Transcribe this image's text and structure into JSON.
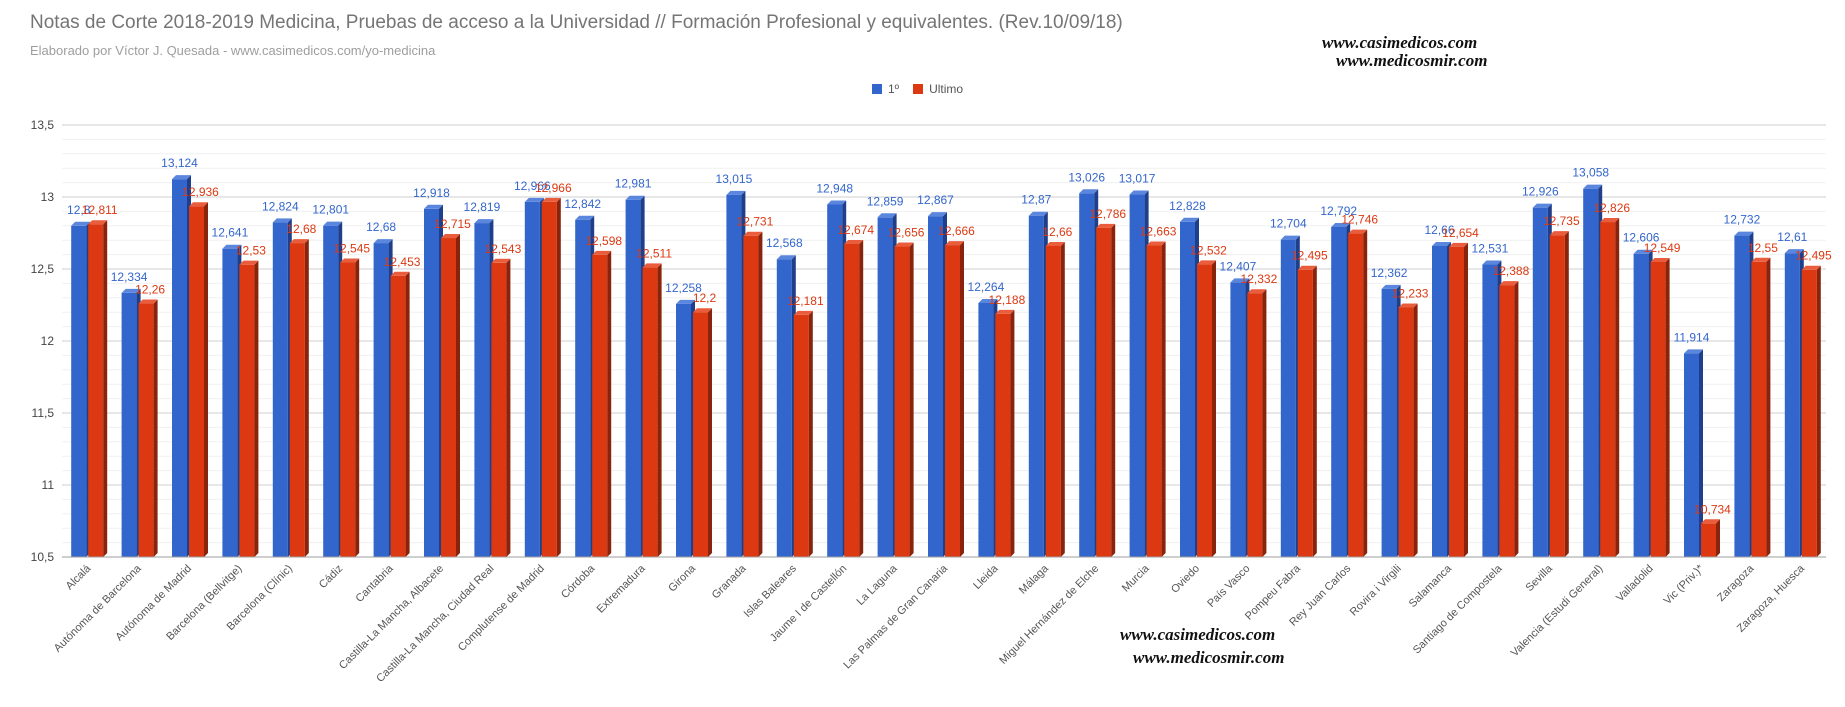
{
  "header": {
    "title": "Notas de Corte 2018-2019 Medicina, Pruebas de acceso a la Universidad // Formación Profesional y equivalentes. (Rev.10/09/18)",
    "subtitle": "Elaborado por Víctor J. Quesada - www.casimedicos.com/yo-medicina"
  },
  "watermarks": {
    "top_line1": "www.casimedicos.com",
    "top_line2": "www.medicosmir.com",
    "bottom_line1": "www.casimedicos.com",
    "bottom_line2": "www.medicosmir.com"
  },
  "colors": {
    "series1": "#3366cc",
    "series1_side": "#1f3f8a",
    "series1_top": "#5b86dd",
    "series2": "#dc3912",
    "series2_side": "#8a230b",
    "series2_top": "#ea5d3c",
    "grid": "#e0e0e0",
    "axis_text": "#444444"
  },
  "chart_data": {
    "type": "bar",
    "title": "Notas de Corte 2018-2019 Medicina, Pruebas de acceso a la Universidad // Formación Profesional y equivalentes. (Rev.10/09/18)",
    "ylim": [
      10.5,
      13.5
    ],
    "yticks": [
      "10,5",
      "11",
      "11,5",
      "12",
      "12,5",
      "13",
      "13,5"
    ],
    "ytick_values": [
      10.5,
      11,
      11.5,
      12,
      12.5,
      13,
      13.5
    ],
    "legend_position": "top-center",
    "categories": [
      "Alcalá",
      "Autónoma de Barcelona",
      "Autónoma de Madrid",
      "Barcelona (Bellvitge)",
      "Barcelona (Clínic)",
      "Cádiz",
      "Cantabria",
      "Castilla-La Mancha, Albacete",
      "Castilla-La Mancha, Ciudad Real",
      "Complutense de Madrid",
      "Córdoba",
      "Extremadura",
      "Girona",
      "Granada",
      "Islas Baleares",
      "Jaume I de Castellón",
      "La Laguna",
      "Las Palmas de Gran Canaria",
      "Lleida",
      "Málaga",
      "Miguel Hernández de Elche",
      "Murcia",
      "Oviedo",
      "País Vasco",
      "Pompeu Fabra",
      "Rey Juan Carlos",
      "Rovira i Virgili",
      "Salamanca",
      "Santiago de Compostela",
      "Sevilla",
      "Valencia (Estudi General)",
      "Valladolid",
      "Vic (Priv.)*",
      "Zaragoza",
      "Zaragoza, Huesca"
    ],
    "series": [
      {
        "name": "1º",
        "values": [
          12.8,
          12.334,
          13.124,
          12.641,
          12.824,
          12.801,
          12.68,
          12.918,
          12.819,
          12.966,
          12.842,
          12.981,
          12.258,
          13.015,
          12.568,
          12.948,
          12.859,
          12.867,
          12.264,
          12.87,
          13.026,
          13.017,
          12.828,
          12.407,
          12.704,
          12.792,
          12.362,
          12.66,
          12.531,
          12.926,
          13.058,
          12.606,
          11.914,
          12.732,
          12.61
        ],
        "labels": [
          "12,8",
          "12,334",
          "13,124",
          "12,641",
          "12,824",
          "12,801",
          "12,68",
          "12,918",
          "12,819",
          "12,966",
          "12,842",
          "12,981",
          "12,258",
          "13,015",
          "12,568",
          "12,948",
          "12,859",
          "12,867",
          "12,264",
          "12,87",
          "13,026",
          "13,017",
          "12,828",
          "12,407",
          "12,704",
          "12,792",
          "12,362",
          "12,66",
          "12,531",
          "12,926",
          "13,058",
          "12,606",
          "11,914",
          "12,732",
          "12,61"
        ]
      },
      {
        "name": "Ultimo",
        "values": [
          12.811,
          12.26,
          12.936,
          12.53,
          12.68,
          12.545,
          12.453,
          12.715,
          12.543,
          12.966,
          12.598,
          12.511,
          12.2,
          12.731,
          12.181,
          12.674,
          12.656,
          12.666,
          12.188,
          12.66,
          12.786,
          12.663,
          12.532,
          12.332,
          12.495,
          12.746,
          12.233,
          12.654,
          12.388,
          12.735,
          12.826,
          12.549,
          10.734,
          12.55,
          12.495
        ],
        "labels": [
          "12,811",
          "12,26",
          "12,936",
          "12,53",
          "12,68",
          "12,545",
          "12,453",
          "12,715",
          "12,543",
          "12,966",
          "12,598",
          "12,511",
          "12,2",
          "12,731",
          "12,181",
          "12,674",
          "12,656",
          "12,666",
          "12,188",
          "12,66",
          "12,786",
          "12,663",
          "12,532",
          "12,332",
          "12,495",
          "12,746",
          "12,233",
          "12,654",
          "12,388",
          "12,735",
          "12,826",
          "12,549",
          "10,734",
          "12,55",
          "12,495"
        ]
      }
    ]
  }
}
